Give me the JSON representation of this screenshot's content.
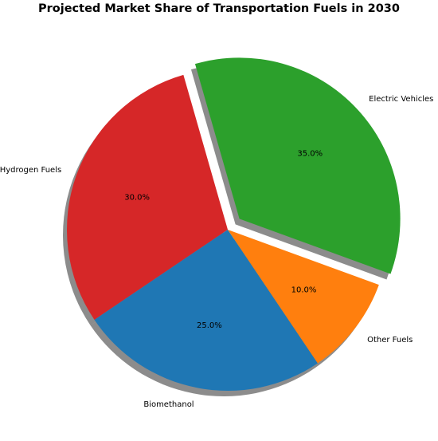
{
  "chart_data": {
    "type": "pie",
    "title": "Projected Market Share of Transportation Fuels in 2030",
    "slices": [
      {
        "label": "Electric Vehicles",
        "value": 35.0,
        "pct_label": "35.0%",
        "color": "#2ca02c",
        "exploded": true
      },
      {
        "label": "Hydrogen Fuels",
        "value": 30.0,
        "pct_label": "30.0%",
        "color": "#d62728",
        "exploded": false
      },
      {
        "label": "Biomethanol",
        "value": 25.0,
        "pct_label": "25.0%",
        "color": "#1f77b4",
        "exploded": false
      },
      {
        "label": "Other Fuels",
        "value": 10.0,
        "pct_label": "10.0%",
        "color": "#ff7f0e",
        "exploded": false
      }
    ],
    "shadow": true,
    "legend": "none"
  }
}
